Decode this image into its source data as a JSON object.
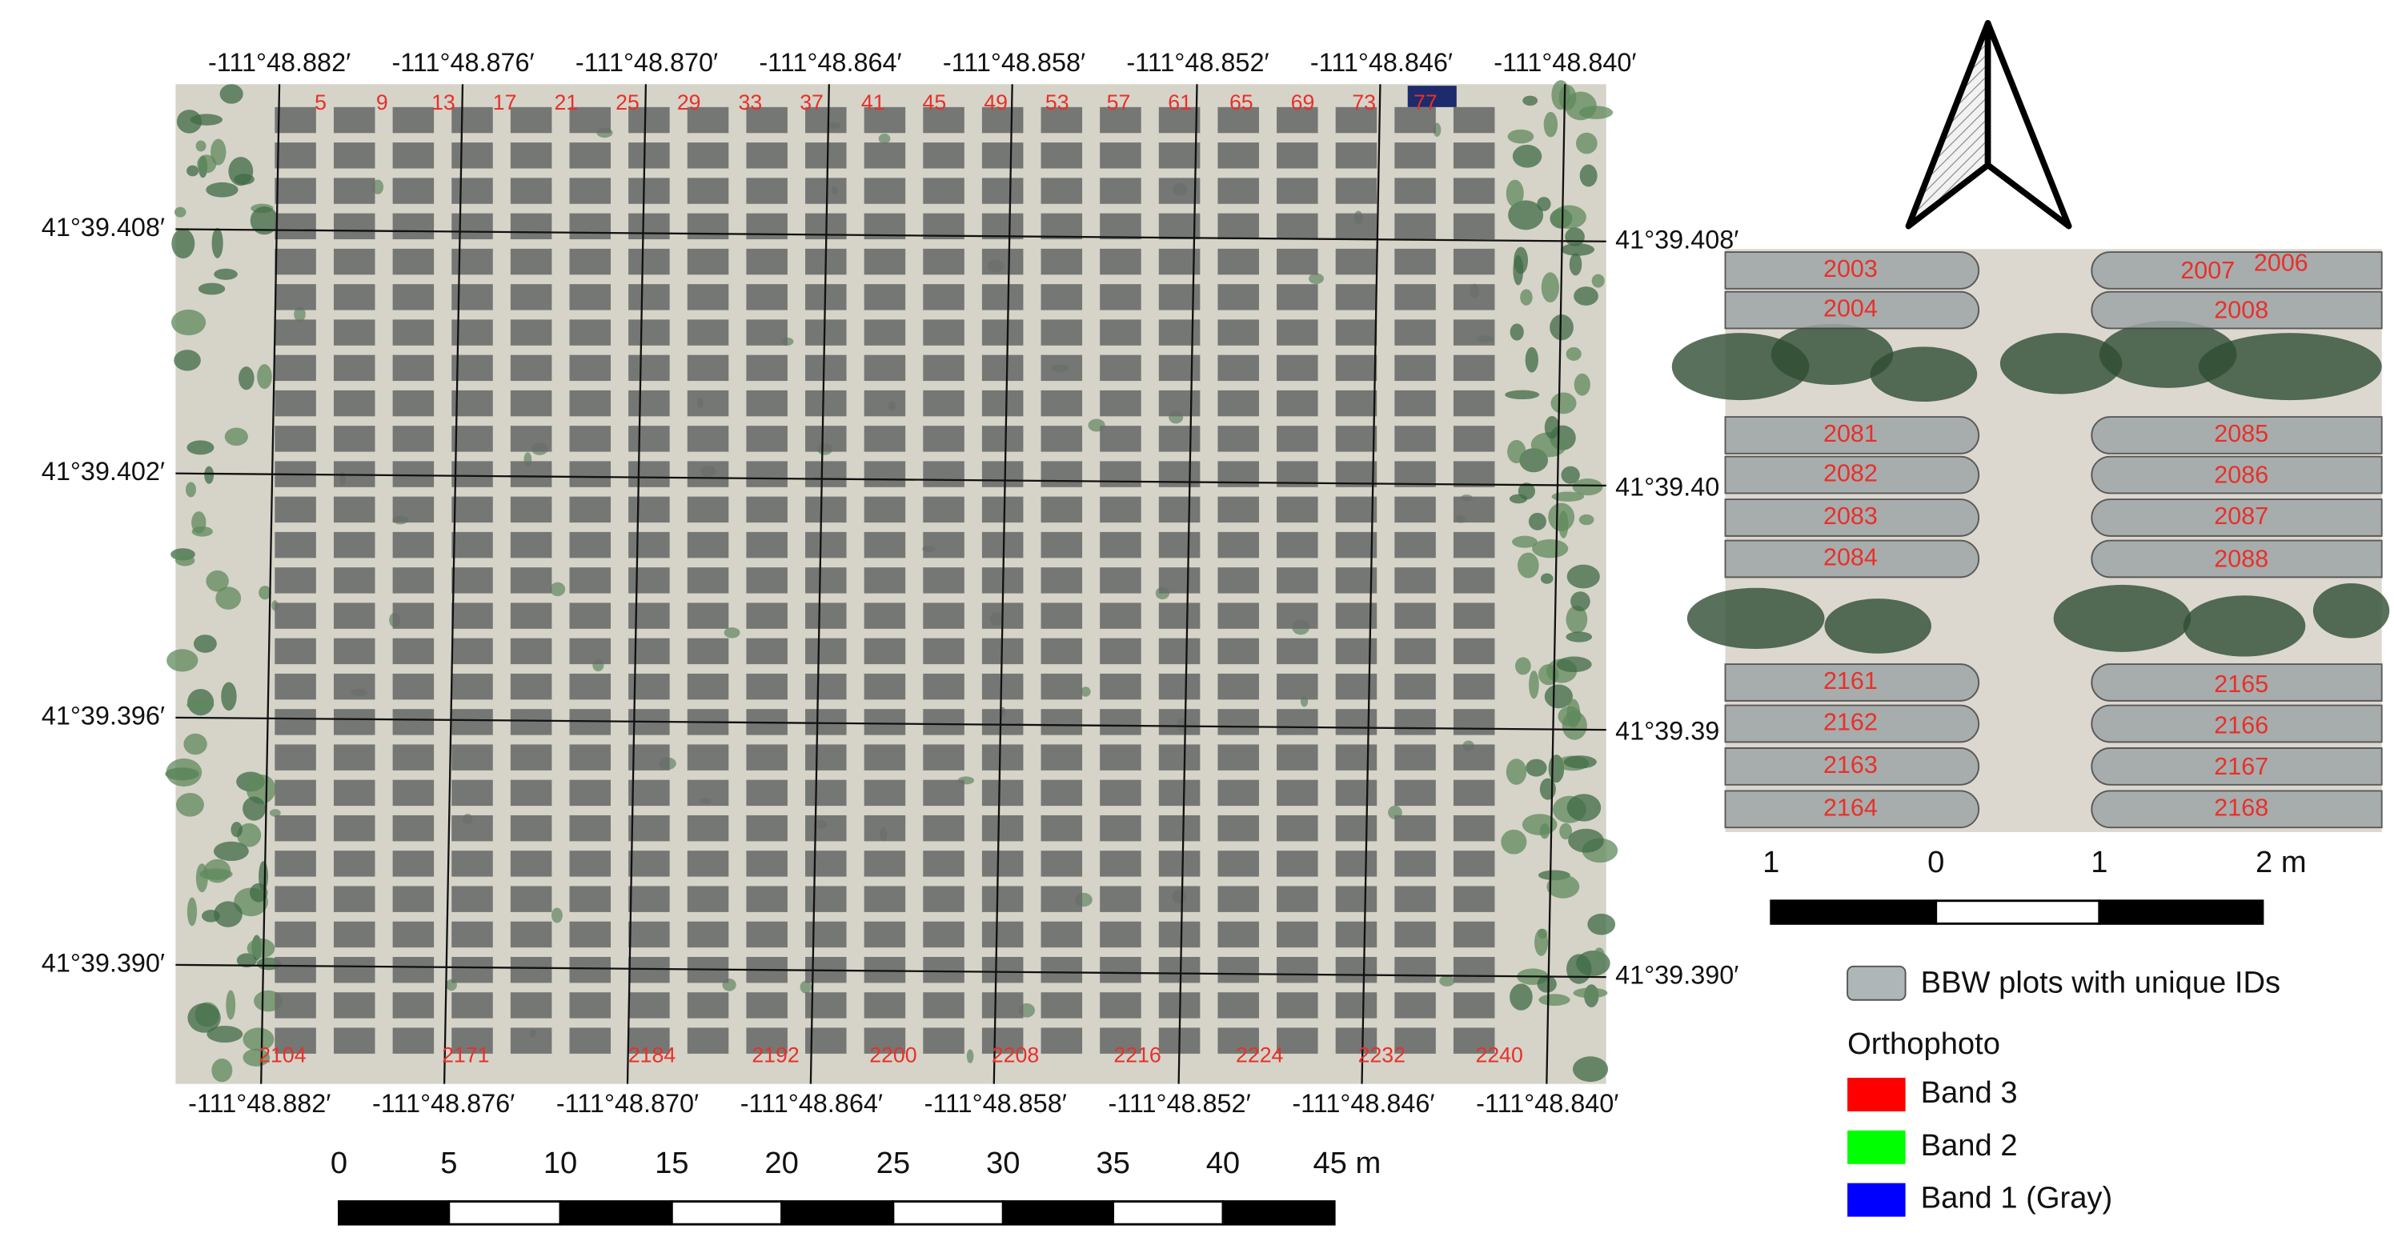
{
  "map": {
    "longitude_labels_top": [
      "-111°48.882′",
      "-111°48.876′",
      "-111°48.870′",
      "-111°48.864′",
      "-111°48.858′",
      "-111°48.852′",
      "-111°48.846′",
      "-111°48.840′"
    ],
    "longitude_labels_bottom": [
      "-111°48.882′",
      "-111°48.876′",
      "-111°48.870′",
      "-111°48.864′",
      "-111°48.858′",
      "-111°48.852′",
      "-111°48.846′",
      "-111°48.840′"
    ],
    "latitude_labels_left": [
      "41°39.408′",
      "41°39.402′",
      "41°39.396′",
      "41°39.390′"
    ],
    "latitude_labels_right": [
      "41°39.408′",
      "41°39.40",
      "41°39.39",
      "41°39.390′"
    ],
    "plot_ids_top": [
      "5",
      "9",
      "13",
      "17",
      "21",
      "25",
      "29",
      "33",
      "37",
      "41",
      "45",
      "49",
      "53",
      "57",
      "61",
      "65",
      "69",
      "73",
      "77"
    ],
    "plot_ids_bottom": [
      "2104",
      "2171",
      "2184",
      "2192",
      "2200",
      "2208",
      "2216",
      "2224",
      "2232",
      "2240"
    ],
    "scale_labels": [
      "0",
      "5",
      "10",
      "15",
      "20",
      "25",
      "30",
      "35",
      "40",
      "45 m"
    ]
  },
  "inset": {
    "plot_ids": [
      "2003",
      "2004",
      "2007",
      "2006",
      "2008",
      "2081",
      "2082",
      "2083",
      "2084",
      "2085",
      "2086",
      "2087",
      "2088",
      "2161",
      "2162",
      "2163",
      "2164",
      "2165",
      "2166",
      "2167",
      "2168"
    ],
    "scale_labels": [
      "1",
      "0",
      "1",
      "2 m"
    ]
  },
  "legend": {
    "plots": "BBW plots with unique IDs",
    "title": "Orthophoto",
    "bands": [
      {
        "label": "Band 3",
        "color": "#ff0000"
      },
      {
        "label": "Band 2",
        "color": "#00ff00"
      },
      {
        "label": "Band 1 (Gray)",
        "color": "#0000ff"
      }
    ]
  }
}
